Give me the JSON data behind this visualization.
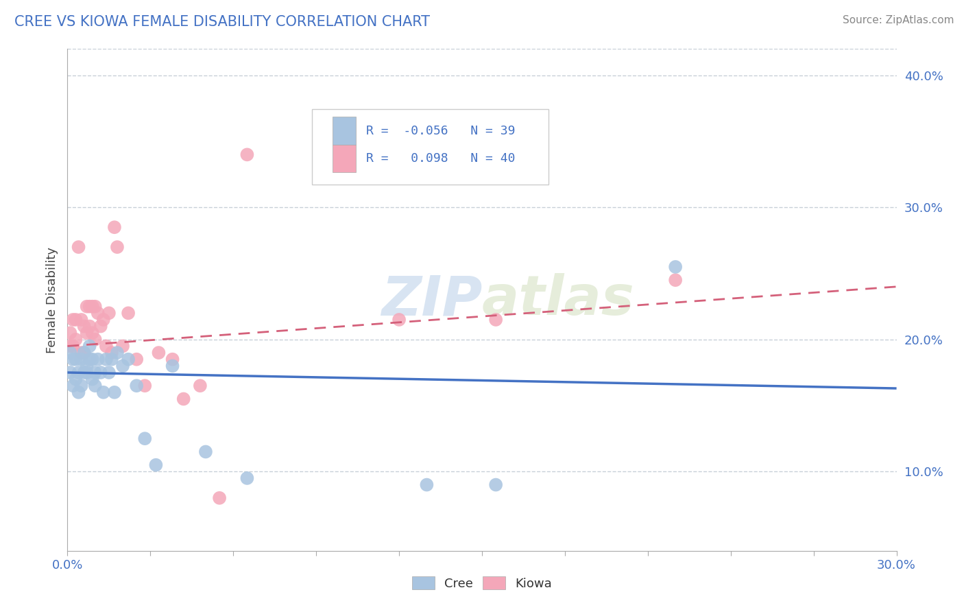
{
  "title": "CREE VS KIOWA FEMALE DISABILITY CORRELATION CHART",
  "source": "Source: ZipAtlas.com",
  "ylabel": "Female Disability",
  "xlim": [
    0.0,
    0.3
  ],
  "ylim": [
    0.04,
    0.42
  ],
  "xticks": [
    0.0,
    0.03,
    0.06,
    0.09,
    0.12,
    0.15,
    0.18,
    0.21,
    0.24,
    0.27,
    0.3
  ],
  "yticks_right": [
    0.1,
    0.2,
    0.3,
    0.4
  ],
  "cree_color": "#a8c4e0",
  "kiowa_color": "#f4a7b9",
  "cree_line_color": "#4472c4",
  "kiowa_line_color": "#d4607a",
  "cree_R": -0.056,
  "cree_N": 39,
  "kiowa_R": 0.098,
  "kiowa_N": 40,
  "background_color": "#ffffff",
  "grid_color": "#c8d0d8",
  "cree_x": [
    0.001,
    0.001,
    0.002,
    0.002,
    0.003,
    0.003,
    0.004,
    0.004,
    0.005,
    0.005,
    0.006,
    0.006,
    0.007,
    0.007,
    0.008,
    0.008,
    0.009,
    0.009,
    0.01,
    0.01,
    0.011,
    0.012,
    0.013,
    0.014,
    0.015,
    0.016,
    0.017,
    0.018,
    0.02,
    0.022,
    0.025,
    0.028,
    0.032,
    0.038,
    0.05,
    0.065,
    0.13,
    0.155,
    0.22
  ],
  "cree_y": [
    0.175,
    0.19,
    0.165,
    0.185,
    0.17,
    0.185,
    0.16,
    0.175,
    0.185,
    0.165,
    0.175,
    0.19,
    0.18,
    0.175,
    0.185,
    0.195,
    0.17,
    0.185,
    0.175,
    0.165,
    0.185,
    0.175,
    0.16,
    0.185,
    0.175,
    0.185,
    0.16,
    0.19,
    0.18,
    0.185,
    0.165,
    0.125,
    0.105,
    0.18,
    0.115,
    0.095,
    0.09,
    0.09,
    0.255
  ],
  "kiowa_x": [
    0.001,
    0.001,
    0.002,
    0.002,
    0.003,
    0.003,
    0.004,
    0.005,
    0.005,
    0.006,
    0.006,
    0.007,
    0.007,
    0.008,
    0.008,
    0.009,
    0.009,
    0.01,
    0.01,
    0.011,
    0.012,
    0.013,
    0.014,
    0.015,
    0.016,
    0.017,
    0.018,
    0.02,
    0.022,
    0.025,
    0.028,
    0.033,
    0.038,
    0.042,
    0.048,
    0.055,
    0.065,
    0.12,
    0.155,
    0.22
  ],
  "kiowa_y": [
    0.195,
    0.205,
    0.195,
    0.215,
    0.2,
    0.215,
    0.27,
    0.19,
    0.215,
    0.19,
    0.21,
    0.205,
    0.225,
    0.21,
    0.225,
    0.205,
    0.225,
    0.2,
    0.225,
    0.22,
    0.21,
    0.215,
    0.195,
    0.22,
    0.19,
    0.285,
    0.27,
    0.195,
    0.22,
    0.185,
    0.165,
    0.19,
    0.185,
    0.155,
    0.165,
    0.08,
    0.34,
    0.215,
    0.215,
    0.245
  ],
  "cree_line_x0": 0.0,
  "cree_line_y0": 0.175,
  "cree_line_x1": 0.3,
  "cree_line_y1": 0.163,
  "kiowa_line_x0": 0.0,
  "kiowa_line_y0": 0.195,
  "kiowa_line_x1": 0.3,
  "kiowa_line_y1": 0.24
}
